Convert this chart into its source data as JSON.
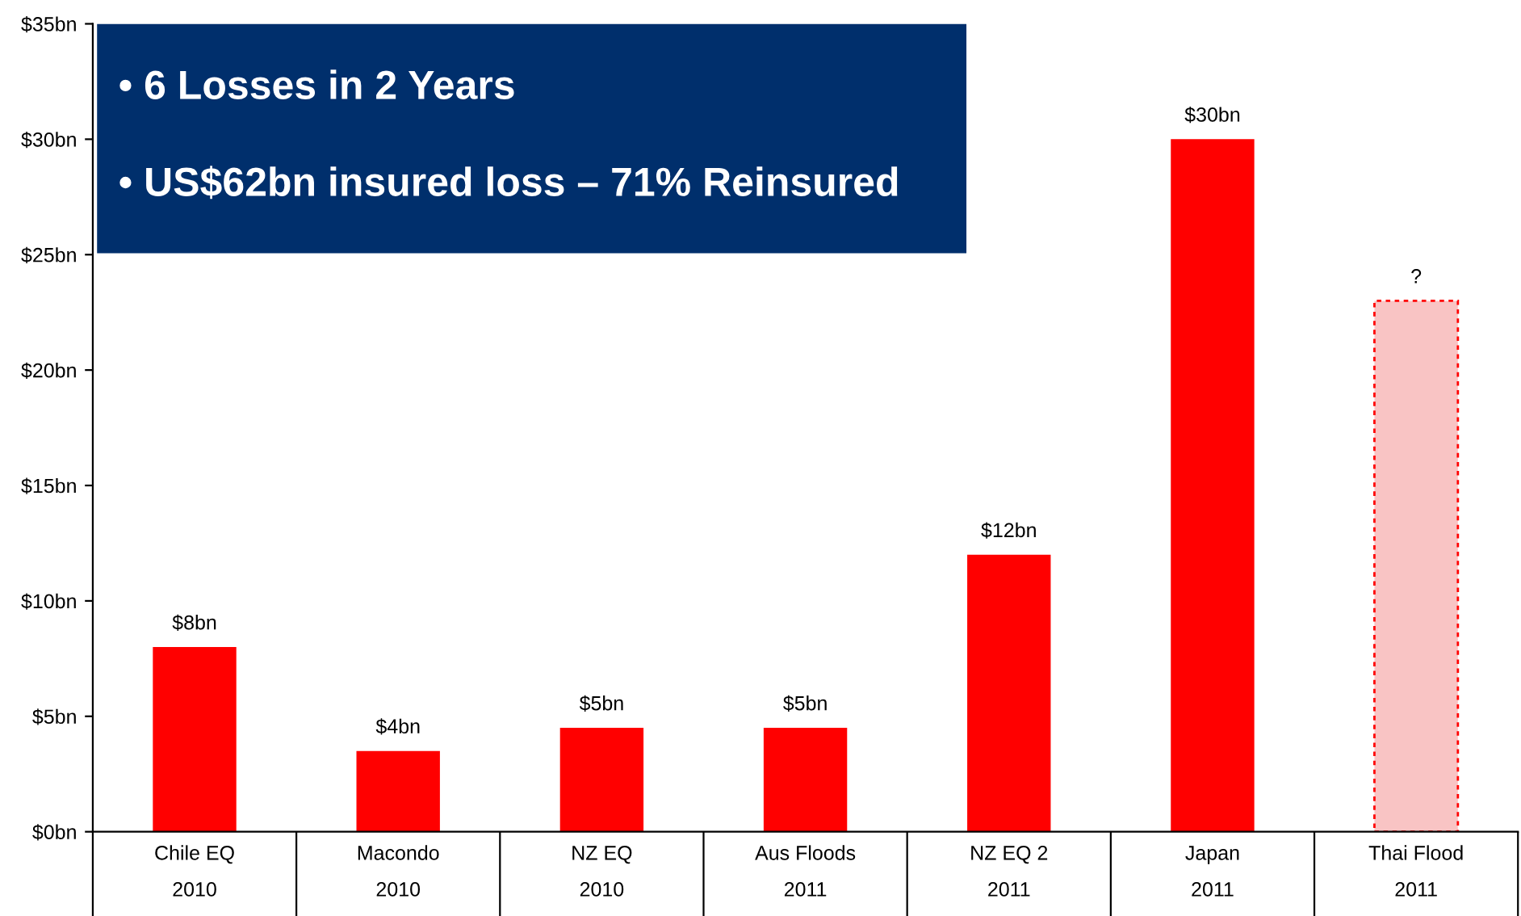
{
  "chart_data": {
    "type": "bar",
    "categories": [
      "Chile EQ\n2010",
      "Macondo\n2010",
      "NZ EQ\n2010",
      "Aus Floods\n2011",
      "NZ EQ 2\n2011",
      "Japan\n2011",
      "Thai Flood\n2011"
    ],
    "values": [
      8,
      3.5,
      4.5,
      4.5,
      12,
      30,
      23
    ],
    "value_labels": [
      "$8bn",
      "$4bn",
      "$5bn",
      "$5bn",
      "$12bn",
      "$30bn",
      "?"
    ],
    "colors": [
      "#ff0000",
      "#ff0000",
      "#ff0000",
      "#ff0000",
      "#ff0000",
      "#ff0000",
      "#f9c4c4"
    ],
    "ylim": [
      0,
      35
    ],
    "yticks": [
      {
        "value": 0,
        "label": "$0bn"
      },
      {
        "value": 5,
        "label": "$5bn"
      },
      {
        "value": 10,
        "label": "$10bn"
      },
      {
        "value": 15,
        "label": "$15bn"
      },
      {
        "value": 20,
        "label": "$20bn"
      },
      {
        "value": 25,
        "label": "$25bn"
      },
      {
        "value": 30,
        "label": "$30bn"
      },
      {
        "value": 35,
        "label": "$35bn"
      }
    ],
    "annotations": [
      "• 6 Losses in 2 Years",
      "• US$62bn insured loss – 71% Reinsured"
    ],
    "grid": false,
    "legend": false
  }
}
